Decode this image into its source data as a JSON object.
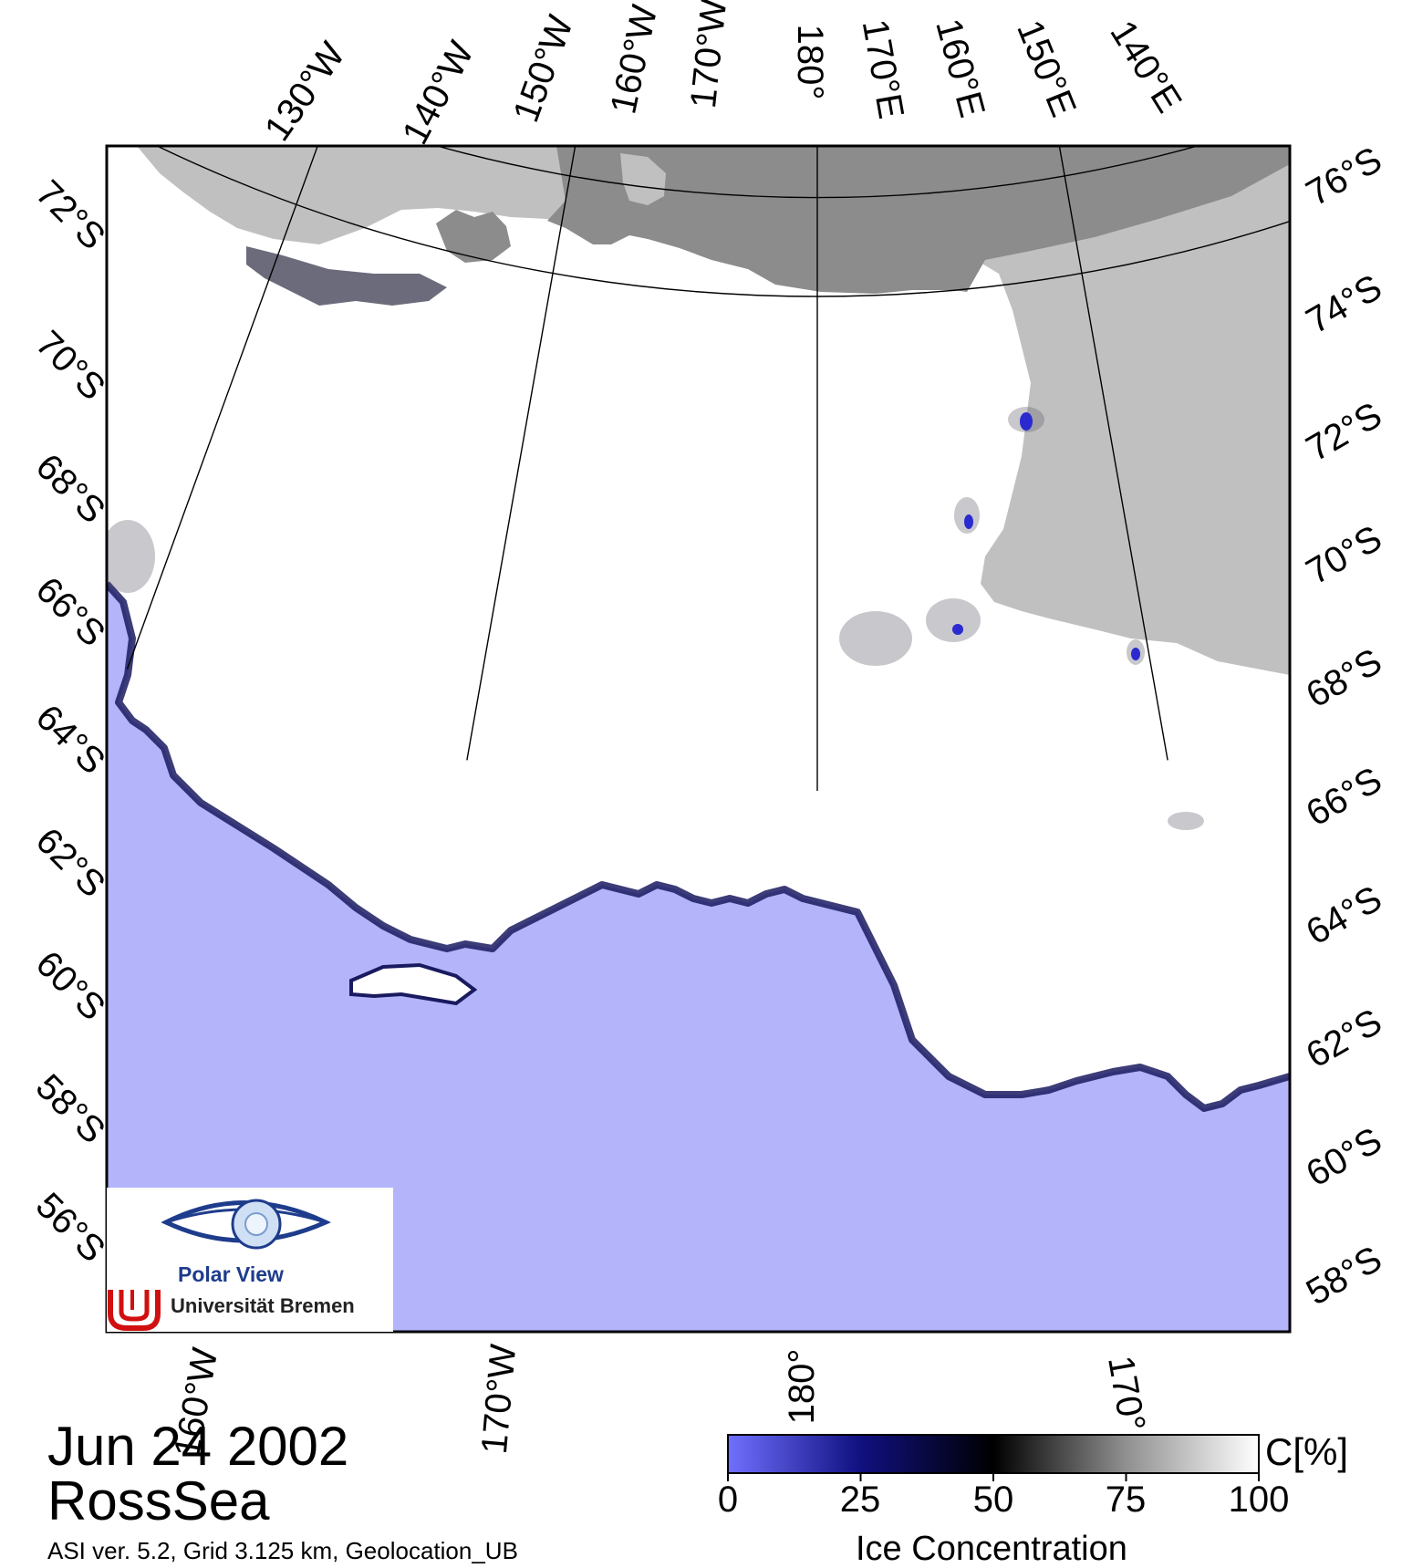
{
  "map": {
    "date": "Jun 24 2002",
    "region": "RossSea",
    "metadata": "ASI ver. 5.2,  Grid 3.125 km, Geolocation_UB",
    "top_longitude_labels": [
      "130°W",
      "140°W",
      "150°W",
      "160°W",
      "170°W",
      "180°",
      "170°E",
      "160°E",
      "150°E",
      "140°E"
    ],
    "left_latitude_labels": [
      "72°S",
      "70°S",
      "68°S",
      "66°S",
      "64°S",
      "62°S",
      "60°S",
      "58°S",
      "56°S"
    ],
    "right_latitude_labels": [
      "76°S",
      "74°S",
      "72°S",
      "70°S",
      "68°S",
      "66°S",
      "64°S",
      "62°S",
      "60°S",
      "58°S"
    ],
    "bottom_longitude_labels": [
      "160°W",
      "170°W",
      "180°",
      "170°"
    ],
    "colors": {
      "open_water": "#b4b4fa",
      "sea_ice": "#ffffff",
      "ice_shelf": "#c0c0c0",
      "land": "#8c8c8c",
      "ice_edge": "#1a1a80"
    }
  },
  "colorbar": {
    "title": "Ice Concentration",
    "unit": "C[%]",
    "ticks": [
      "0",
      "25",
      "50",
      "75",
      "100"
    ],
    "stops": [
      {
        "value": 0,
        "color": "#7070ff"
      },
      {
        "value": 25,
        "color": "#101080"
      },
      {
        "value": 50,
        "color": "#000000"
      },
      {
        "value": 75,
        "color": "#909090"
      },
      {
        "value": 100,
        "color": "#ffffff"
      }
    ]
  },
  "logo": {
    "title": "Polar View",
    "institution": "Universität Bremen"
  }
}
